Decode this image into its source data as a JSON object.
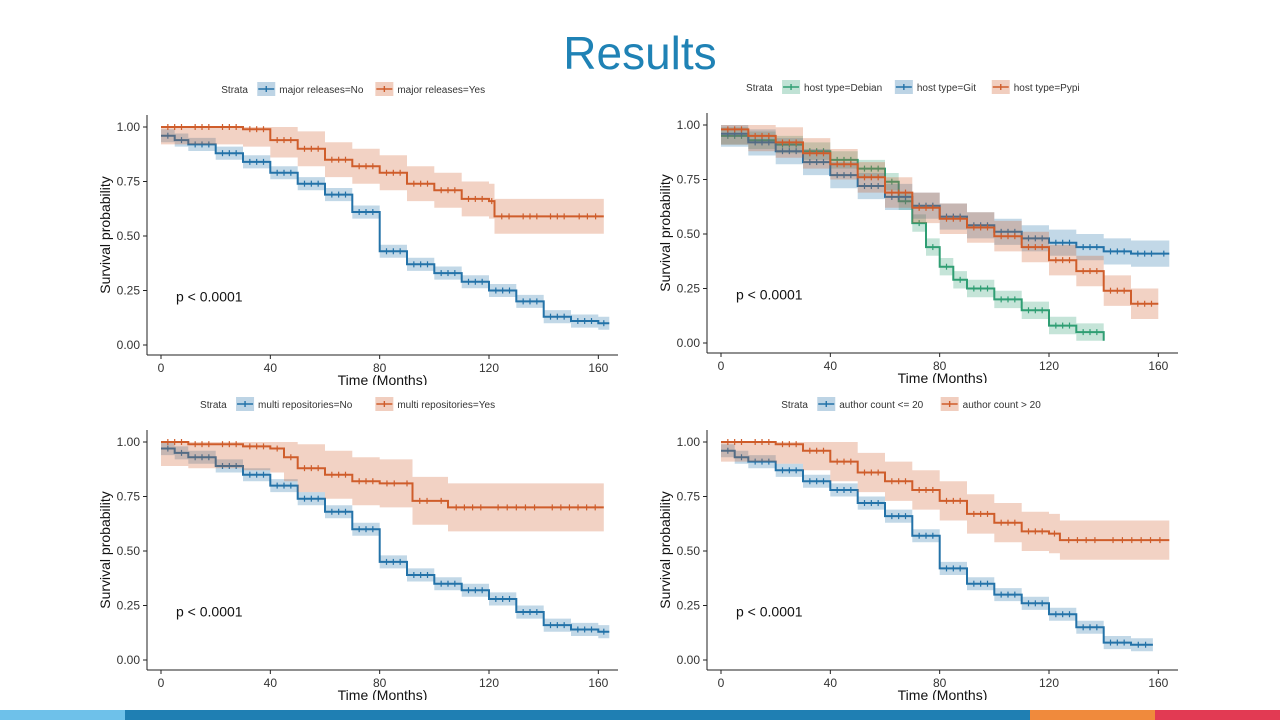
{
  "slide": {
    "title": "Results"
  },
  "colors": {
    "title": "#1f82b5",
    "blue": "#2372a8",
    "orange": "#cf5d2b",
    "green": "#2f9e73",
    "footer": [
      "#6ec1ea",
      "#1f7fb3",
      "#f08a3c",
      "#e23a53"
    ]
  },
  "chart_data": [
    {
      "type": "line",
      "subtype": "kaplan-meier",
      "legend_title": "Strata",
      "legend_position": "top",
      "xlabel": "Time (Months)",
      "ylabel": "Survival probability",
      "xlim": [
        0,
        165
      ],
      "ylim": [
        0,
        1
      ],
      "x_ticks": [
        "0",
        "40",
        "80",
        "120",
        "160"
      ],
      "y_ticks": [
        "0.00",
        "0.25",
        "0.50",
        "0.75",
        "1.00"
      ],
      "annotation": "p < 0.0001",
      "series": [
        {
          "name": "major releases=No",
          "color": "blue",
          "x": [
            0,
            5,
            10,
            20,
            30,
            40,
            50,
            60,
            70,
            80,
            90,
            100,
            110,
            120,
            130,
            140,
            150,
            160,
            164
          ],
          "y": [
            0.96,
            0.94,
            0.92,
            0.88,
            0.84,
            0.79,
            0.74,
            0.69,
            0.61,
            0.43,
            0.37,
            0.33,
            0.29,
            0.25,
            0.2,
            0.13,
            0.11,
            0.1,
            0.1
          ],
          "ci": 0.03
        },
        {
          "name": "major releases=Yes",
          "color": "orange",
          "x": [
            0,
            10,
            20,
            30,
            40,
            50,
            60,
            70,
            80,
            90,
            100,
            110,
            120,
            122,
            130,
            140,
            150,
            162
          ],
          "y": [
            1.0,
            1.0,
            1.0,
            0.99,
            0.94,
            0.9,
            0.85,
            0.82,
            0.79,
            0.74,
            0.71,
            0.67,
            0.66,
            0.59,
            0.59,
            0.59,
            0.59,
            0.59
          ],
          "ci": 0.08
        }
      ]
    },
    {
      "type": "line",
      "subtype": "kaplan-meier",
      "legend_title": "Strata",
      "legend_position": "top",
      "xlabel": "Time (Months)",
      "ylabel": "Survival probability",
      "xlim": [
        0,
        165
      ],
      "ylim": [
        0,
        1
      ],
      "x_ticks": [
        "0",
        "40",
        "80",
        "120",
        "160"
      ],
      "y_ticks": [
        "0.00",
        "0.25",
        "0.50",
        "0.75",
        "1.00"
      ],
      "annotation": "p < 0.0001",
      "series": [
        {
          "name": "host type=Debian",
          "color": "green",
          "x": [
            0,
            10,
            20,
            30,
            40,
            50,
            60,
            65,
            70,
            75,
            80,
            85,
            90,
            100,
            110,
            120,
            130,
            140
          ],
          "y": [
            0.95,
            0.93,
            0.91,
            0.88,
            0.84,
            0.8,
            0.74,
            0.65,
            0.55,
            0.44,
            0.35,
            0.29,
            0.25,
            0.2,
            0.15,
            0.08,
            0.05,
            0.01
          ],
          "ci": 0.04
        },
        {
          "name": "host type=Git",
          "color": "blue",
          "x": [
            0,
            10,
            20,
            30,
            40,
            50,
            60,
            70,
            80,
            90,
            100,
            110,
            120,
            130,
            140,
            150,
            160,
            164
          ],
          "y": [
            0.96,
            0.92,
            0.88,
            0.83,
            0.77,
            0.72,
            0.67,
            0.63,
            0.58,
            0.54,
            0.51,
            0.48,
            0.46,
            0.44,
            0.42,
            0.41,
            0.41,
            0.41
          ],
          "ci": 0.06
        },
        {
          "name": "host type=Pypi",
          "color": "orange",
          "x": [
            0,
            10,
            20,
            30,
            40,
            50,
            60,
            70,
            80,
            90,
            100,
            110,
            120,
            130,
            140,
            150,
            160
          ],
          "y": [
            0.98,
            0.95,
            0.92,
            0.87,
            0.82,
            0.76,
            0.69,
            0.62,
            0.57,
            0.53,
            0.49,
            0.44,
            0.38,
            0.33,
            0.24,
            0.18,
            0.18
          ],
          "ci": 0.07
        }
      ]
    },
    {
      "type": "line",
      "subtype": "kaplan-meier",
      "legend_title": "Strata",
      "legend_position": "top",
      "xlabel": "Time (Months)",
      "ylabel": "Survival probability",
      "xlim": [
        0,
        165
      ],
      "ylim": [
        0,
        1
      ],
      "x_ticks": [
        "0",
        "40",
        "80",
        "120",
        "160"
      ],
      "y_ticks": [
        "0.00",
        "0.25",
        "0.50",
        "0.75",
        "1.00"
      ],
      "annotation": "p < 0.0001",
      "series": [
        {
          "name": "multi repositories=No",
          "color": "blue",
          "x": [
            0,
            5,
            10,
            20,
            30,
            40,
            50,
            60,
            70,
            80,
            90,
            100,
            110,
            120,
            130,
            140,
            150,
            160,
            164
          ],
          "y": [
            0.97,
            0.95,
            0.93,
            0.89,
            0.85,
            0.8,
            0.74,
            0.68,
            0.6,
            0.45,
            0.39,
            0.35,
            0.32,
            0.28,
            0.22,
            0.16,
            0.14,
            0.13,
            0.13
          ],
          "ci": 0.03
        },
        {
          "name": "multi repositories=Yes",
          "color": "orange",
          "x": [
            0,
            10,
            20,
            30,
            40,
            45,
            50,
            60,
            70,
            80,
            88,
            92,
            100,
            105,
            120,
            140,
            162
          ],
          "y": [
            1.0,
            0.99,
            0.99,
            0.98,
            0.97,
            0.93,
            0.88,
            0.85,
            0.82,
            0.81,
            0.81,
            0.73,
            0.73,
            0.7,
            0.7,
            0.7,
            0.7
          ],
          "ci": 0.11
        }
      ]
    },
    {
      "type": "line",
      "subtype": "kaplan-meier",
      "legend_title": "Strata",
      "legend_position": "top",
      "xlabel": "Time (Months)",
      "ylabel": "Survival probability",
      "xlim": [
        0,
        165
      ],
      "ylim": [
        0,
        1
      ],
      "x_ticks": [
        "0",
        "40",
        "80",
        "120",
        "160"
      ],
      "y_ticks": [
        "0.00",
        "0.25",
        "0.50",
        "0.75",
        "1.00"
      ],
      "annotation": "p < 0.0001",
      "series": [
        {
          "name": "author count <= 20",
          "color": "blue",
          "x": [
            0,
            5,
            10,
            20,
            30,
            40,
            50,
            60,
            70,
            80,
            90,
            100,
            110,
            120,
            130,
            140,
            150,
            158
          ],
          "y": [
            0.96,
            0.93,
            0.91,
            0.87,
            0.82,
            0.78,
            0.72,
            0.66,
            0.57,
            0.42,
            0.35,
            0.3,
            0.26,
            0.21,
            0.15,
            0.08,
            0.07,
            0.07
          ],
          "ci": 0.03
        },
        {
          "name": "author count > 20",
          "color": "orange",
          "x": [
            0,
            10,
            20,
            30,
            40,
            50,
            60,
            70,
            80,
            90,
            100,
            110,
            120,
            124,
            140,
            164
          ],
          "y": [
            1.0,
            1.0,
            0.99,
            0.96,
            0.91,
            0.86,
            0.82,
            0.78,
            0.73,
            0.67,
            0.63,
            0.59,
            0.58,
            0.55,
            0.55,
            0.55
          ],
          "ci": 0.09
        }
      ]
    }
  ]
}
